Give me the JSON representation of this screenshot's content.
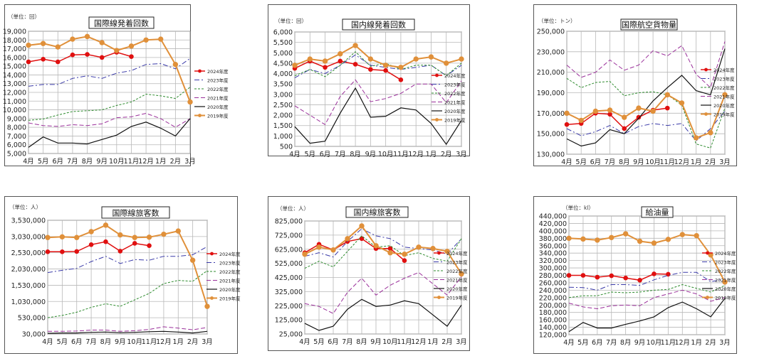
{
  "months": [
    "4月",
    "5月",
    "6月",
    "7月",
    "8月",
    "9月",
    "10月",
    "11月",
    "12月",
    "1月",
    "2月",
    "3月"
  ],
  "legend_labels": [
    "2024年度",
    "2023年度",
    "2022年度",
    "2021年度",
    "2020年度",
    "2019年度"
  ],
  "series_colors": {
    "2024年度": "#e01010",
    "2023年度": "#3a3aa8",
    "2022年度": "#2e8b2e",
    "2021年度": "#9a2f9a",
    "2020年度": "#111111",
    "2019年度": "#e0903a"
  },
  "chart_data": [
    {
      "type": "line",
      "title": "国際線発着回数",
      "unit_label": "（単位：回）",
      "ylim": [
        5000,
        19000
      ],
      "yticks": [
        "5,000",
        "6,000",
        "7,000",
        "8,000",
        "9,000",
        "10,000",
        "11,000",
        "12,000",
        "13,000",
        "14,000",
        "15,000",
        "16,000",
        "17,000",
        "18,000",
        "19,000"
      ],
      "series": [
        {
          "name": "2024年度",
          "values": [
            15500,
            15800,
            15500,
            16300,
            16350,
            16000,
            16600,
            16100,
            null,
            null,
            null,
            null
          ]
        },
        {
          "name": "2023年度",
          "values": [
            12700,
            12900,
            12900,
            13600,
            13900,
            13600,
            14200,
            14500,
            15200,
            15300,
            14700,
            15900
          ]
        },
        {
          "name": "2022年度",
          "values": [
            8800,
            8950,
            9400,
            9800,
            9900,
            10000,
            10500,
            10900,
            11800,
            11600,
            11300,
            12600
          ]
        },
        {
          "name": "2021年度",
          "values": [
            8500,
            8200,
            8100,
            8300,
            8200,
            8400,
            9100,
            9200,
            9600,
            9000,
            8000,
            9000
          ]
        },
        {
          "name": "2020年度",
          "values": [
            5700,
            6900,
            6200,
            6200,
            6100,
            6600,
            7100,
            8100,
            8600,
            7900,
            7000,
            9000
          ]
        },
        {
          "name": "2019年度",
          "values": [
            17400,
            17600,
            17200,
            18100,
            18400,
            17700,
            16800,
            17300,
            18000,
            18100,
            15200,
            10900
          ]
        }
      ]
    },
    {
      "type": "line",
      "title": "国内線発着回数",
      "unit_label": "（単位：回）",
      "ylim": [
        500,
        6000
      ],
      "yticks": [
        "500",
        "1,000",
        "1,500",
        "2,000",
        "2,500",
        "3,000",
        "3,500",
        "4,000",
        "4,500",
        "5,000",
        "5,500",
        "6,000"
      ],
      "series": [
        {
          "name": "2024年度",
          "values": [
            4250,
            4600,
            4300,
            4600,
            4450,
            4200,
            4150,
            3700,
            null,
            null,
            null,
            null
          ]
        },
        {
          "name": "2023年度",
          "values": [
            3800,
            4200,
            4000,
            4400,
            4900,
            4400,
            4300,
            4200,
            4300,
            4400,
            3900,
            4400
          ]
        },
        {
          "name": "2022年度",
          "values": [
            3900,
            4200,
            3850,
            4400,
            5050,
            4350,
            4500,
            4200,
            4400,
            4400,
            3900,
            4500
          ]
        },
        {
          "name": "2021年度",
          "values": [
            2450,
            2000,
            1550,
            2900,
            3700,
            2650,
            2800,
            3050,
            3500,
            3500,
            2600,
            3650
          ]
        },
        {
          "name": "2020年度",
          "values": [
            1450,
            650,
            750,
            2100,
            3300,
            1900,
            1950,
            2350,
            2250,
            1600,
            600,
            1750
          ]
        },
        {
          "name": "2019年度",
          "values": [
            4400,
            4700,
            4600,
            4950,
            5350,
            4700,
            4400,
            4300,
            4700,
            4800,
            4500,
            4700
          ]
        }
      ]
    },
    {
      "type": "line",
      "title": "国際航空貨物量",
      "unit_label": "（単位：トン）",
      "ylim": [
        130000,
        250000
      ],
      "yticks": [
        "130,000",
        "150,000",
        "170,000",
        "190,000",
        "210,000",
        "230,000",
        "250,000"
      ],
      "series": [
        {
          "name": "2024年度",
          "values": [
            159000,
            160000,
            170000,
            169000,
            155000,
            166000,
            173000,
            175000,
            null,
            null,
            null,
            null
          ]
        },
        {
          "name": "2023年度",
          "values": [
            155000,
            148000,
            152000,
            158000,
            150000,
            157000,
            160000,
            158000,
            160000,
            143000,
            155000,
            172000
          ]
        },
        {
          "name": "2022年度",
          "values": [
            204000,
            195000,
            200000,
            201000,
            187000,
            190000,
            191000,
            188000,
            178000,
            140000,
            136000,
            175000
          ]
        },
        {
          "name": "2021年度",
          "values": [
            217000,
            205000,
            210000,
            222000,
            212000,
            217000,
            231000,
            226000,
            236000,
            208000,
            195000,
            240000
          ]
        },
        {
          "name": "2020年度",
          "values": [
            145000,
            138000,
            141000,
            154000,
            150000,
            165000,
            182000,
            195000,
            207000,
            192000,
            188000,
            233000
          ]
        },
        {
          "name": "2019年度",
          "values": [
            170000,
            163000,
            172000,
            173000,
            166000,
            175000,
            172000,
            188000,
            180000,
            146000,
            151000,
            188000
          ]
        }
      ]
    },
    {
      "type": "line",
      "title": "国際線旅客数",
      "unit_label": "（単位：人）",
      "ylim": [
        30000,
        3530000
      ],
      "yticks": [
        "30,000",
        "530,000",
        "1,030,000",
        "1,530,000",
        "2,030,000",
        "2,530,000",
        "3,030,000",
        "3,530,000"
      ],
      "series": [
        {
          "name": "2024年度",
          "values": [
            2560000,
            2560000,
            2570000,
            2780000,
            2870000,
            2580000,
            2820000,
            2750000,
            null,
            null,
            null,
            null
          ]
        },
        {
          "name": "2023年度",
          "values": [
            1920000,
            1990000,
            2050000,
            2260000,
            2420000,
            2200000,
            2320000,
            2300000,
            2420000,
            2420000,
            2470000,
            2720000
          ]
        },
        {
          "name": "2022年度",
          "values": [
            530000,
            600000,
            700000,
            850000,
            960000,
            880000,
            1080000,
            1280000,
            1580000,
            1680000,
            1650000,
            1980000
          ]
        },
        {
          "name": "2021年度",
          "values": [
            110000,
            110000,
            120000,
            150000,
            150000,
            110000,
            130000,
            170000,
            250000,
            210000,
            160000,
            230000
          ]
        },
        {
          "name": "2020年度",
          "values": [
            50000,
            60000,
            60000,
            80000,
            90000,
            70000,
            80000,
            100000,
            110000,
            90000,
            60000,
            110000
          ]
        },
        {
          "name": "2019年度",
          "values": [
            3000000,
            3020000,
            3000000,
            3180000,
            3380000,
            3080000,
            3000000,
            3010000,
            3100000,
            3200000,
            2300000,
            880000
          ]
        }
      ]
    },
    {
      "type": "line",
      "title": "国内線旅客数",
      "unit_label": "（単位：人）",
      "ylim": [
        25000,
        825000
      ],
      "yticks": [
        "25,000",
        "125,000",
        "225,000",
        "325,000",
        "425,000",
        "525,000",
        "625,000",
        "725,000",
        "825,000"
      ],
      "series": [
        {
          "name": "2024年度",
          "values": [
            600000,
            660000,
            620000,
            680000,
            700000,
            630000,
            630000,
            545000,
            null,
            null,
            null,
            null
          ]
        },
        {
          "name": "2023年度",
          "values": [
            575000,
            600000,
            570000,
            680000,
            770000,
            720000,
            700000,
            640000,
            630000,
            620000,
            590000,
            700000
          ]
        },
        {
          "name": "2022年度",
          "values": [
            490000,
            540000,
            500000,
            610000,
            720000,
            640000,
            650000,
            580000,
            600000,
            560000,
            540000,
            700000
          ]
        },
        {
          "name": "2021年度",
          "values": [
            240000,
            220000,
            170000,
            320000,
            420000,
            300000,
            370000,
            420000,
            460000,
            380000,
            300000,
            430000
          ]
        },
        {
          "name": "2020年度",
          "values": [
            100000,
            50000,
            80000,
            200000,
            270000,
            220000,
            230000,
            260000,
            240000,
            160000,
            80000,
            230000
          ]
        },
        {
          "name": "2019年度",
          "values": [
            590000,
            640000,
            620000,
            700000,
            790000,
            650000,
            600000,
            590000,
            640000,
            630000,
            610000,
            450000
          ]
        }
      ]
    },
    {
      "type": "line",
      "title": "給油量",
      "unit_label": "（単位：kl）",
      "ylim": [
        120000,
        440000
      ],
      "yticks": [
        "120,000",
        "140,000",
        "160,000",
        "180,000",
        "200,000",
        "220,000",
        "240,000",
        "260,000",
        "280,000",
        "300,000",
        "320,000",
        "340,000",
        "360,000",
        "380,000",
        "400,000",
        "420,000",
        "440,000"
      ],
      "series": [
        {
          "name": "2024年度",
          "values": [
            280000,
            280000,
            275000,
            279000,
            273000,
            267000,
            284000,
            283000,
            null,
            null,
            null,
            null
          ]
        },
        {
          "name": "2023年度",
          "values": [
            248000,
            247000,
            240000,
            255000,
            255000,
            253000,
            268000,
            280000,
            288000,
            288000,
            263000,
            270000
          ]
        },
        {
          "name": "2022年度",
          "values": [
            220000,
            225000,
            225000,
            235000,
            233000,
            235000,
            240000,
            242000,
            255000,
            245000,
            235000,
            253000
          ]
        },
        {
          "name": "2021年度",
          "values": [
            205000,
            195000,
            190000,
            198000,
            200000,
            198000,
            220000,
            230000,
            240000,
            230000,
            210000,
            220000
          ]
        },
        {
          "name": "2020年度",
          "values": [
            128000,
            153000,
            138000,
            138000,
            148000,
            157000,
            168000,
            193000,
            208000,
            190000,
            168000,
            218000
          ]
        },
        {
          "name": "2019年度",
          "values": [
            380000,
            378000,
            375000,
            382000,
            392000,
            372000,
            367000,
            377000,
            390000,
            387000,
            335000,
            262000
          ]
        }
      ]
    }
  ]
}
